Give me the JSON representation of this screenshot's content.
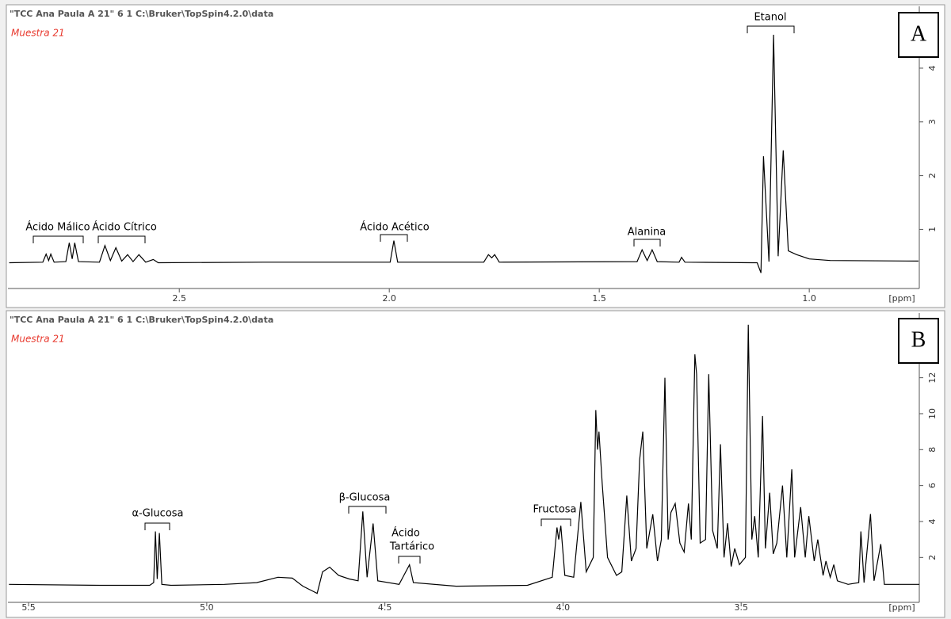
{
  "chart_data": [
    {
      "type": "line",
      "header": "\"TCC Ana Paula A 21\"  6  1  C:\\Bruker\\TopSpin4.2.0\\data",
      "subtitle": "Muestra 21",
      "panel_label": "A",
      "x_label": "[ppm]",
      "xlim": [
        2.908,
        0.738
      ],
      "ylim": [
        -0.1,
        5.15
      ],
      "xticks": [
        2.5,
        {
          "value": 2,
          "label": "2.0"
        },
        1.5,
        {
          "value": 1,
          "label": "1.0"
        }
      ],
      "yticks": [
        1,
        2,
        3,
        4
      ],
      "annotations": [
        {
          "lines": [
            "Ácido Málico"
          ]
        },
        {
          "lines": [
            "Ácido Cítrico"
          ]
        },
        {
          "lines": [
            "Ácido Acético"
          ]
        },
        {
          "lines": [
            "Alanina"
          ]
        },
        {
          "lines": [
            "Etanol"
          ]
        }
      ],
      "x": [
        2.905,
        2.825,
        2.817,
        2.811,
        2.806,
        2.798,
        2.77,
        2.762,
        2.755,
        2.749,
        2.74,
        2.69,
        2.677,
        2.664,
        2.651,
        2.637,
        2.623,
        2.61,
        2.596,
        2.58,
        2.562,
        2.55,
        2.3,
        1.998,
        1.989,
        1.98,
        1.775,
        1.764,
        1.756,
        1.749,
        1.738,
        1.41,
        1.398,
        1.386,
        1.374,
        1.362,
        1.31,
        1.304,
        1.296,
        1.135,
        1.124,
        1.115,
        1.109,
        1.096,
        1.085,
        1.074,
        1.062,
        1.05,
        1.03,
        1.0,
        0.95,
        0.74
      ],
      "series": [
        {
          "color": "#000000",
          "values": [
            0.38,
            0.39,
            0.54,
            0.42,
            0.54,
            0.39,
            0.4,
            0.75,
            0.45,
            0.75,
            0.4,
            0.39,
            0.7,
            0.42,
            0.66,
            0.41,
            0.53,
            0.4,
            0.53,
            0.39,
            0.44,
            0.38,
            0.39,
            0.39,
            0.79,
            0.39,
            0.39,
            0.53,
            0.47,
            0.53,
            0.39,
            0.4,
            0.62,
            0.42,
            0.62,
            0.4,
            0.39,
            0.48,
            0.39,
            0.38,
            0.38,
            0.19,
            2.36,
            0.4,
            4.62,
            0.5,
            2.47,
            0.6,
            0.53,
            0.45,
            0.42,
            0.41
          ]
        }
      ]
    },
    {
      "type": "line",
      "header": "\"TCC Ana Paula A 21\"  6  1  C:\\Bruker\\TopSpin4.2.0\\data",
      "subtitle": "Muestra 21",
      "panel_label": "B",
      "x_label": "[ppm]",
      "xlim": [
        5.558,
        3.0
      ],
      "ylim": [
        -0.5,
        15.6
      ],
      "xticks": [
        5.5,
        {
          "value": 5,
          "label": "5.0"
        },
        4.5,
        {
          "value": 4,
          "label": "4.0"
        },
        3.5
      ],
      "yticks": [
        2,
        4,
        6,
        8,
        10,
        12
      ],
      "annotations": [
        {
          "lines": [
            "α-Glucosa"
          ]
        },
        {
          "lines": [
            "β-Glucosa"
          ]
        },
        {
          "lines": [
            "Ácido",
            "Tartárico"
          ]
        },
        {
          "lines": [
            "Fructosa"
          ]
        }
      ],
      "x": [
        5.555,
        5.3,
        5.16,
        5.149,
        5.144,
        5.139,
        5.133,
        5.126,
        5.1,
        4.95,
        4.86,
        4.8,
        4.76,
        4.73,
        4.7,
        4.69,
        4.675,
        4.655,
        4.63,
        4.6,
        4.575,
        4.562,
        4.55,
        4.533,
        4.52,
        4.46,
        4.431,
        4.42,
        4.3,
        4.1,
        4.03,
        4.017,
        4.012,
        4.006,
        3.995,
        3.97,
        3.95,
        3.935,
        3.915,
        3.908,
        3.903,
        3.899,
        3.89,
        3.875,
        3.85,
        3.835,
        3.821,
        3.808,
        3.795,
        3.785,
        3.776,
        3.765,
        3.748,
        3.735,
        3.724,
        3.714,
        3.705,
        3.697,
        3.685,
        3.672,
        3.66,
        3.648,
        3.64,
        3.63,
        3.625,
        3.615,
        3.6,
        3.591,
        3.58,
        3.567,
        3.558,
        3.548,
        3.538,
        3.528,
        3.518,
        3.505,
        3.488,
        3.48,
        3.47,
        3.462,
        3.452,
        3.44,
        3.432,
        3.42,
        3.41,
        3.4,
        3.384,
        3.372,
        3.358,
        3.35,
        3.333,
        3.32,
        3.31,
        3.295,
        3.285,
        3.27,
        3.262,
        3.25,
        3.24,
        3.23,
        3.2,
        3.17,
        3.164,
        3.155,
        3.137,
        3.127,
        3.108,
        3.098,
        3.0
      ],
      "series": [
        {
          "color": "#000000",
          "values": [
            0.5,
            0.45,
            0.45,
            0.6,
            3.45,
            0.8,
            3.36,
            0.5,
            0.45,
            0.5,
            0.6,
            0.9,
            0.85,
            0.4,
            0.1,
            0,
            1.2,
            1.46,
            1,
            0.8,
            0.7,
            4.56,
            0.9,
            3.89,
            0.7,
            0.5,
            1.59,
            0.6,
            0.4,
            0.45,
            0.9,
            3.67,
            3,
            3.76,
            1,
            0.9,
            5.09,
            1.2,
            2,
            10.2,
            8,
            9,
            6.1,
            2,
            1,
            1.2,
            5.44,
            1.8,
            2.5,
            7.43,
            9,
            2.5,
            4.4,
            1.8,
            3,
            12,
            3,
            4.5,
            5,
            2.8,
            2.3,
            5,
            3,
            13.3,
            12.2,
            2.8,
            3,
            12.2,
            3.5,
            2.5,
            8.3,
            2,
            3.9,
            1.5,
            2.5,
            1.6,
            2,
            14.95,
            3,
            4.3,
            2,
            9.87,
            2.5,
            5.6,
            2.2,
            2.8,
            6,
            2,
            6.9,
            2,
            4.8,
            2,
            4.3,
            1.8,
            3,
            1,
            1.8,
            0.9,
            1.6,
            0.7,
            0.5,
            0.6,
            3.45,
            0.6,
            4.42,
            0.7,
            2.74,
            0.5,
            0.5
          ]
        }
      ]
    }
  ]
}
